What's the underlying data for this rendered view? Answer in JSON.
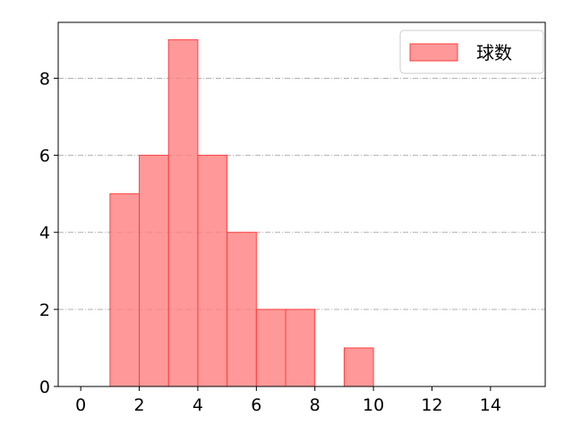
{
  "chart_data": {
    "type": "bar",
    "subtype": "histogram",
    "bins": [
      [
        1,
        2
      ],
      [
        2,
        3
      ],
      [
        3,
        4
      ],
      [
        4,
        5
      ],
      [
        5,
        6
      ],
      [
        6,
        7
      ],
      [
        7,
        8
      ],
      [
        8,
        9
      ],
      [
        9,
        10
      ]
    ],
    "values": [
      5,
      6,
      9,
      6,
      4,
      2,
      2,
      0,
      1
    ],
    "series": [
      {
        "name": "球数",
        "values": [
          5,
          6,
          9,
          6,
          4,
          2,
          2,
          0,
          1
        ]
      }
    ],
    "xlim": [
      -0.77,
      15.87
    ],
    "ylim": [
      0,
      9.45
    ],
    "xticks": [
      0,
      2,
      4,
      6,
      8,
      10,
      12,
      14
    ],
    "yticks": [
      0,
      2,
      4,
      6,
      8
    ],
    "grid": "y dash-dot",
    "legend_placement": "top-right",
    "bar_color": "#ff8080",
    "bar_edge_color": "#ff4040",
    "title": "",
    "xlabel": "",
    "ylabel": ""
  }
}
